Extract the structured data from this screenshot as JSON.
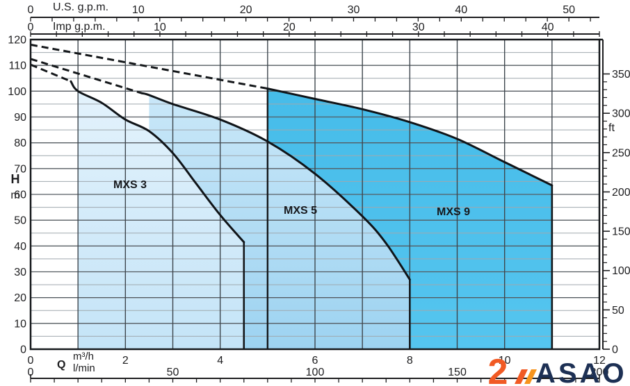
{
  "top_axes": {
    "us_gpm": {
      "title": "U.S. g.p.m.",
      "tick_values": [
        0,
        10,
        20,
        30,
        40,
        50
      ],
      "minor_step": 2,
      "minor_max": 52
    },
    "imp_gpm": {
      "title": "Imp g.p.m.",
      "tick_values": [
        0,
        10,
        20,
        30,
        40
      ],
      "minor_step": 2,
      "minor_max": 44
    }
  },
  "left_axis": {
    "symbol": "H",
    "unit": "m",
    "tick_values": [
      0,
      10,
      20,
      30,
      40,
      50,
      60,
      70,
      80,
      90,
      100,
      110,
      120
    ],
    "minor_grid_step": 5,
    "major_grid_step": 10
  },
  "right_axis": {
    "unit": "ft",
    "tick_values": [
      0,
      50,
      100,
      150,
      200,
      250,
      300,
      350
    ],
    "minor_tick_step": 10,
    "major_tick_step": 50
  },
  "bottom_axis": {
    "symbol": "Q",
    "row1_unit": "m³/h",
    "row1_values": [
      0,
      2,
      4,
      6,
      8,
      10,
      12
    ],
    "row2_unit": "l/min",
    "row2_values": [
      0,
      50,
      100,
      150,
      200
    ],
    "minor_tick_step_m3h": 0.5
  },
  "chart_data": {
    "type": "area",
    "x_unit": "m³/h",
    "y_unit": "m",
    "xlim": [
      0,
      12
    ],
    "ylim": [
      0,
      120
    ],
    "grid": "on",
    "series": [
      {
        "name": "MXS 3",
        "fill_top": "#e3f2fc",
        "fill_bottom": "#c4e4f7",
        "dashed_extension": [
          [
            0,
            110.3
          ],
          [
            0.85,
            103.8
          ]
        ],
        "curve": [
          [
            0.85,
            103.8
          ],
          [
            1,
            100
          ],
          [
            1.5,
            95.5
          ],
          [
            2,
            89
          ],
          [
            2.5,
            84.5
          ],
          [
            3,
            76
          ],
          [
            3.5,
            64
          ],
          [
            4,
            52
          ],
          [
            4.5,
            41.5
          ]
        ],
        "q_min": 1,
        "q_max": 4.5,
        "h_at_qmax": 41.5,
        "left_edge_stroke": false
      },
      {
        "name": "MXS 5",
        "fill_top": "#c9e7f8",
        "fill_bottom": "#9dd3f1",
        "dashed_extension": [
          [
            0,
            112.5
          ],
          [
            2.35,
            99.2
          ]
        ],
        "curve": [
          [
            2.35,
            99.2
          ],
          [
            2.5,
            98.5
          ],
          [
            3,
            95
          ],
          [
            4,
            89
          ],
          [
            5,
            80.5
          ],
          [
            6,
            68
          ],
          [
            7,
            51.5
          ],
          [
            7.5,
            41
          ],
          [
            8,
            27
          ]
        ],
        "q_min": 2.5,
        "q_max": 8,
        "h_at_qmax": 27,
        "left_edge_stroke": false
      },
      {
        "name": "MXS 9",
        "fill_top": "#46bce9",
        "fill_bottom": "#55c5ef",
        "dashed_extension": [
          [
            0,
            118
          ],
          [
            5,
            101
          ]
        ],
        "curve": [
          [
            5,
            101
          ],
          [
            6,
            97
          ],
          [
            7,
            93
          ],
          [
            8,
            88
          ],
          [
            9,
            81.5
          ],
          [
            10,
            72.5
          ],
          [
            11,
            63.5
          ]
        ],
        "q_min": 5,
        "q_max": 11,
        "h_at_qmax": 63.5,
        "left_edge_stroke": true
      }
    ]
  },
  "logo": {
    "text": "ASAO",
    "text_color": "#1d3054",
    "mark_color": "#f15a24",
    "stripe_colors": [
      "#f15a24",
      "#f7941d"
    ]
  }
}
